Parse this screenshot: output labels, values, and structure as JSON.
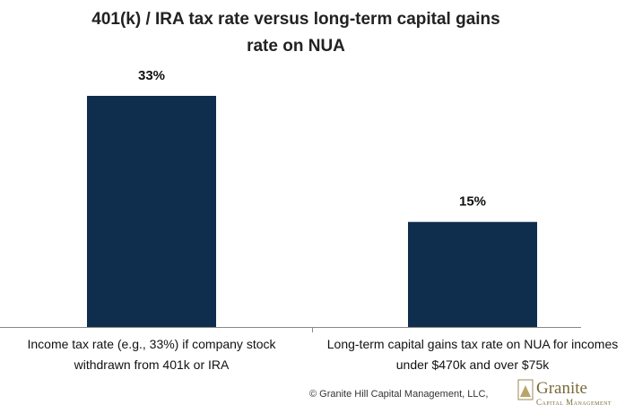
{
  "chart_data": {
    "type": "bar",
    "title": "401(k) / IRA tax rate versus long-term capital gains rate on NUA",
    "categories": [
      "Income tax rate (e.g., 33%) if company stock withdrawn from 401k or IRA",
      "Long-term capital gains tax rate on NUA for incomes under $470k and over $75k"
    ],
    "values": [
      33,
      15
    ],
    "value_labels": [
      "33%",
      "15%"
    ],
    "color": "#0f2d4d",
    "footer": "© Granite Hill Capital Management, LLC,",
    "logo": {
      "name": "Granite",
      "tagline": "Capital Management"
    }
  }
}
